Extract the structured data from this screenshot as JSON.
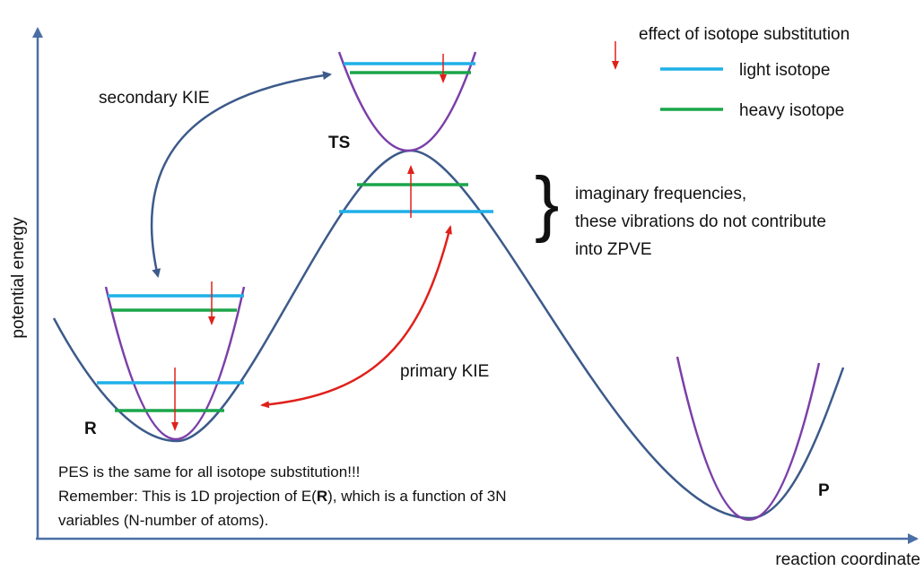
{
  "axes": {
    "y_label": "potential energy",
    "x_label": "reaction coordinate"
  },
  "legend": {
    "arrow_label": "effect of isotope substitution",
    "items": [
      {
        "label": "light isotope",
        "color": "#1fb0e8"
      },
      {
        "label": "heavy isotope",
        "color": "#1aa64a"
      }
    ]
  },
  "labels": {
    "secondary": "secondary KIE",
    "ts": "TS",
    "primary": "primary KIE",
    "r": "R",
    "p": "P",
    "imaginary": [
      "imaginary frequencies,",
      "these vibrations do not contribute",
      "into ZPVE"
    ]
  },
  "note": {
    "line1": "PES is the same for all isotope substitution!!!",
    "line2": [
      "Remember: This is 1D projection of E(",
      "R",
      "), which is a function of 3N"
    ],
    "line3": "variables (N-number of atoms)."
  }
}
